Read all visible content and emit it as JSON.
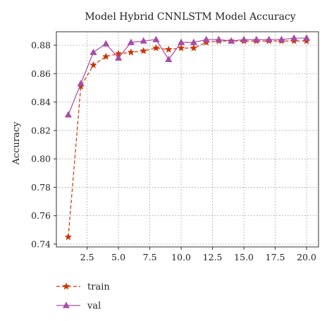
{
  "chart_data": {
    "type": "line",
    "title": "Model Hybrid CNNLSTM Model Accuracy",
    "xlabel": "",
    "ylabel": "Accuracy",
    "xlim": [
      0.05,
      20.95
    ],
    "ylim": [
      0.738,
      0.8895
    ],
    "xticks": [
      2.5,
      5.0,
      7.5,
      10.0,
      12.5,
      15.0,
      17.5,
      20.0
    ],
    "xtick_labels": [
      "2.5",
      "5.0",
      "7.5",
      "10.0",
      "12.5",
      "15.0",
      "17.5",
      "20.0"
    ],
    "yticks": [
      0.74,
      0.76,
      0.78,
      0.8,
      0.82,
      0.84,
      0.86,
      0.88
    ],
    "ytick_labels": [
      "0.74",
      "0.76",
      "0.78",
      "0.80",
      "0.82",
      "0.84",
      "0.86",
      "0.88"
    ],
    "grid": true,
    "grid_style": "dotted",
    "legend_position": "bottom-left",
    "x": [
      1,
      2,
      3,
      4,
      5,
      6,
      7,
      8,
      9,
      10,
      11,
      12,
      13,
      14,
      15,
      16,
      17,
      18,
      19,
      20
    ],
    "series": [
      {
        "name": "train",
        "color": "#cc3300",
        "line_style": "dashed",
        "marker": "star",
        "values": [
          0.745,
          0.851,
          0.866,
          0.872,
          0.874,
          0.875,
          0.876,
          0.878,
          0.877,
          0.878,
          0.878,
          0.882,
          0.883,
          0.883,
          0.883,
          0.883,
          0.883,
          0.883,
          0.883,
          0.883
        ]
      },
      {
        "name": "val",
        "color": "#a64ca6",
        "line_style": "solid",
        "marker": "triangle",
        "values": [
          0.831,
          0.853,
          0.875,
          0.881,
          0.871,
          0.882,
          0.883,
          0.884,
          0.87,
          0.882,
          0.882,
          0.884,
          0.884,
          0.883,
          0.884,
          0.884,
          0.884,
          0.884,
          0.885,
          0.885
        ]
      }
    ]
  }
}
